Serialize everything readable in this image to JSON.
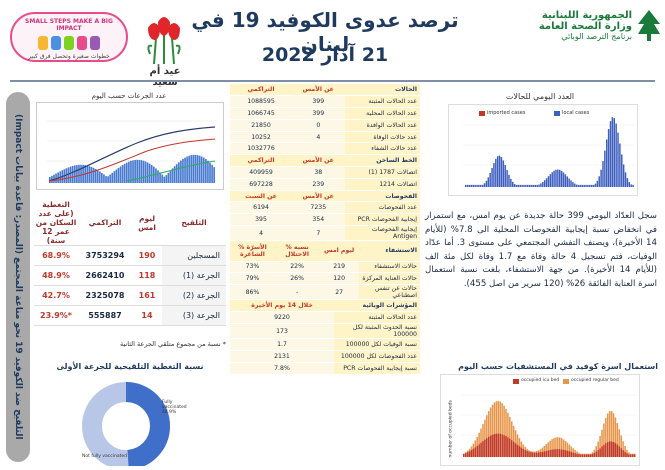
{
  "header": {
    "title": "ترصد عدوى الكوفيد 19 في لبنان",
    "date": "21 آذار 2022",
    "ministry_line1": "الجمهورية اللبنانية",
    "ministry_line2": "وزارة الصحة العامة",
    "ministry_line3": "برنامج الترصد الوبائي",
    "campaign_title": "SMALL STEPS MAKE A BIG IMPACT",
    "campaign_sub": "خطوات صغيرة وتحصل فرق كبير",
    "mothers_day": "عيد أم سعيد"
  },
  "vertical_banner": "التلقيح ضد الكوفيد 19 نحو مناعة المجتمع (المصدر: قاعدة بيانات Impact)",
  "left_panel": {
    "chart_title": "عدد الجرعات حسب اليوم",
    "table": {
      "headers": [
        "التلقيح",
        "ليوم امس",
        "التراكمي",
        "النغطية (على عدد السكان من عمر 12 سنة)"
      ],
      "rows": [
        {
          "label": "المسجلين",
          "yesterday": "190",
          "cumulative": "3753294",
          "coverage": "68.9%"
        },
        {
          "label": "الجرعة (1)",
          "yesterday": "118",
          "cumulative": "2662410",
          "coverage": "48.9%"
        },
        {
          "label": "الجرعة (2)",
          "yesterday": "161",
          "cumulative": "2325078",
          "coverage": "42.7%"
        },
        {
          "label": "الجرعة (3)",
          "yesterday": "14",
          "cumulative": "555887",
          "coverage": "23.9%*"
        }
      ]
    },
    "footnote": "* نسبة من مجموع متلقي الجرعة الثانية",
    "donut_title": "نسبة التغطية التلقيحية للجرعة الأولى",
    "donut_label_a": "Fully vaccinated 48.9%",
    "donut_label_b": "Not fully vaccinated",
    "coverage_fraction": 0.489
  },
  "middle_table": {
    "sec1": {
      "h_label": "الحالات",
      "h_v1": "عن الأمس",
      "h_v2": "التراكمي",
      "rows": [
        {
          "label": "عدد الحالات المثبتة",
          "v1": "399",
          "v2": "1088595"
        },
        {
          "label": "عدد الحالات المحلية",
          "v1": "399",
          "v2": "1066745"
        },
        {
          "label": "عدد الحالات الوافدة",
          "v1": "0",
          "v2": "21850"
        },
        {
          "label": "عدد حالات الوفاة",
          "v1": "4",
          "v2": "10252"
        },
        {
          "label": "عدد حالات الشفاء",
          "v1": "",
          "v2": "1032776"
        }
      ]
    },
    "sec2": {
      "h_label": "الخط الساخن",
      "h_v1": "عن الأمس",
      "h_v2": "التراكمي",
      "rows": [
        {
          "label": "اتصالات 1787 (1)",
          "v1": "38",
          "v2": "409959"
        },
        {
          "label": "اتصالات 1214",
          "v1": "239",
          "v2": "697228"
        }
      ]
    },
    "sec3": {
      "h_label": "الفحوصات",
      "h_v1": "عن الأمس",
      "h_v2": "عن السبت",
      "rows": [
        {
          "label": "عدد الفحوصات",
          "v1": "7235",
          "v2": "6194"
        },
        {
          "label": "إيجابية الفحوصات PCR",
          "v1": "354",
          "v2": "395"
        },
        {
          "label": "إيجابية الفحوصات Antigen",
          "v1": "7",
          "v2": "4"
        }
      ]
    },
    "sec4": {
      "h_label": "الاستشفاء",
      "h_v1": "ليوم امس",
      "h_v2": "% نسبة الاحتلال",
      "h_v3": "% الأسرّة الشاغرة",
      "rows": [
        {
          "label": "حالات الاستشفاء",
          "v1": "219",
          "v2": "22%",
          "v3": "73%"
        },
        {
          "label": "حالات العناية المركزة",
          "v1": "120",
          "v2": "26%",
          "v3": "79%"
        },
        {
          "label": "حالات عن تنفس اصطناعي",
          "v1": "27",
          "v2": "-",
          "v3": "86%"
        }
      ]
    },
    "sec5": {
      "h_label": "المؤشرات الوبائية",
      "h_v1": "خلال 14 يوم الأخيرة",
      "rows": [
        {
          "label": "عدد الحالات المثبتة",
          "v1": "9220"
        },
        {
          "label": "نسبة الحدوث المثبتة لكل 100000",
          "v1": "173"
        },
        {
          "label": "نسبة الوفيات لكل 100000",
          "v1": "1.7"
        },
        {
          "label": "عدد الفحوصات لكل 100000",
          "v1": "2131"
        },
        {
          "label": "نسبة إيجابية الفحوصات PCR",
          "v1": "7.8%"
        }
      ]
    }
  },
  "right_panel": {
    "chart_title": "العدد اليومي للحالات",
    "legend_a": "imported cases",
    "legend_b": "local cases",
    "paragraph": "سجل العدّاد اليومي 399 حالة جديدة عن يوم امس، مع استمرار في انخفاض نسبة إيجابية الفحوصات المحلية الى 7.8% (للأيام 14 الأخيرة)، ويصنف التفشي المجتمعي على مستوى 3. أما عدّاد الوفيات، فتم تسجيل 4 حالة وفاة مع 1.7 وفاة لكل مئة الف (للأيام 14 الأخيرة). من جهة الاستشفاء، بلغت نسبة استعمال اسرة العناية الفائقة 26% (120 سرير من اصل 455).",
    "bed_chart_title": "استعمال اسرة كوفيد في المستشفيات حسب اليوم",
    "bed_legend_a": "occupied icu bed",
    "bed_legend_b": "occupied regular bed",
    "bed_ylabel": "number of occupied beds"
  },
  "colors": {
    "navy": "#1f3a5f",
    "accent_red": "#c0392b",
    "table_bg": "#fff3c8",
    "chart_blue": "#3f5fbf"
  }
}
